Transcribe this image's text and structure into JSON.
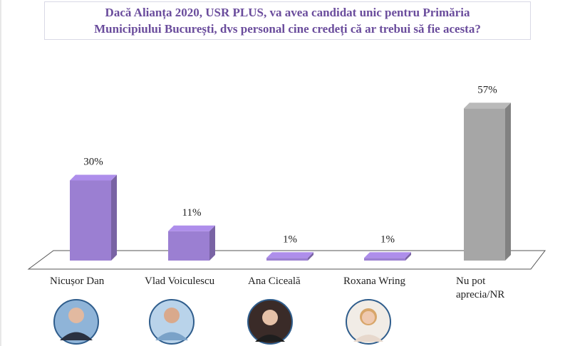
{
  "chart_data": {
    "type": "bar3d",
    "title": "Dacă Alianța 2020, USR PLUS, va avea candidat unic pentru Primăria Municipiului București, dvs personal cine credeți că ar trebui să fie acesta?",
    "categories": [
      "Nicușor Dan",
      "Vlad Voiculescu",
      "Ana Ciceală",
      "Roxana Wring",
      "Nu pot apreciа/NR"
    ],
    "values": [
      30,
      11,
      1,
      1,
      57
    ],
    "value_labels": [
      "30%",
      "11%",
      "1%",
      "1%",
      "57%"
    ],
    "colors": [
      "#9b7fd2",
      "#9b7fd2",
      "#9b7fd2",
      "#9b7fd2",
      "#a6a6a6"
    ]
  }
}
